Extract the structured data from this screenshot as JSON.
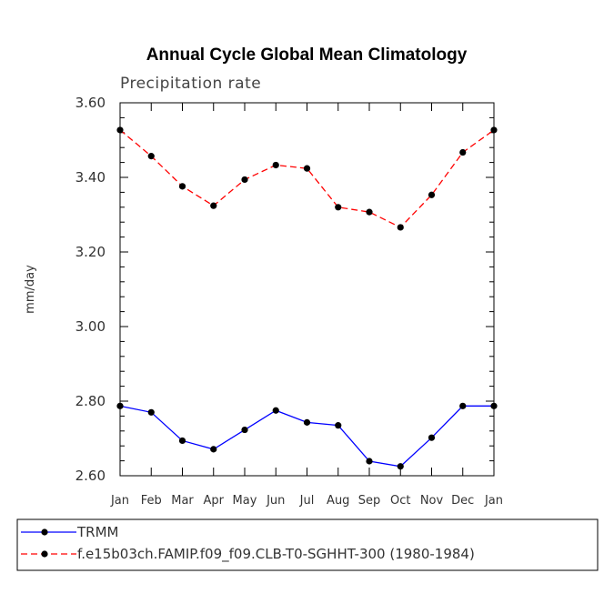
{
  "chart_data": {
    "type": "line",
    "title": "Annual Cycle Global Mean Climatology",
    "subtitle": "Precipitation rate",
    "xlabel": "",
    "ylabel": "mm/day",
    "ylim": [
      2.6,
      3.6
    ],
    "yticks": [
      "2.60",
      "2.80",
      "3.00",
      "3.20",
      "3.40",
      "3.60"
    ],
    "categories": [
      "Jan",
      "Feb",
      "Mar",
      "Apr",
      "May",
      "Jun",
      "Jul",
      "Aug",
      "Sep",
      "Oct",
      "Nov",
      "Dec",
      "Jan"
    ],
    "series": [
      {
        "name": "TRMM",
        "color": "#0000ff",
        "dashed": false,
        "values": [
          2.787,
          2.77,
          2.694,
          2.671,
          2.723,
          2.775,
          2.743,
          2.735,
          2.639,
          2.625,
          2.702,
          2.787,
          2.787
        ]
      },
      {
        "name": "f.e15b03ch.FAMIP.f09_f09.CLB-T0-SGHHT-300 (1980-1984)",
        "color": "#ff0000",
        "dashed": true,
        "values": [
          3.527,
          3.457,
          3.376,
          3.324,
          3.394,
          3.433,
          3.424,
          3.32,
          3.307,
          3.266,
          3.353,
          3.467,
          3.527
        ]
      }
    ],
    "legend_position": "bottom"
  }
}
